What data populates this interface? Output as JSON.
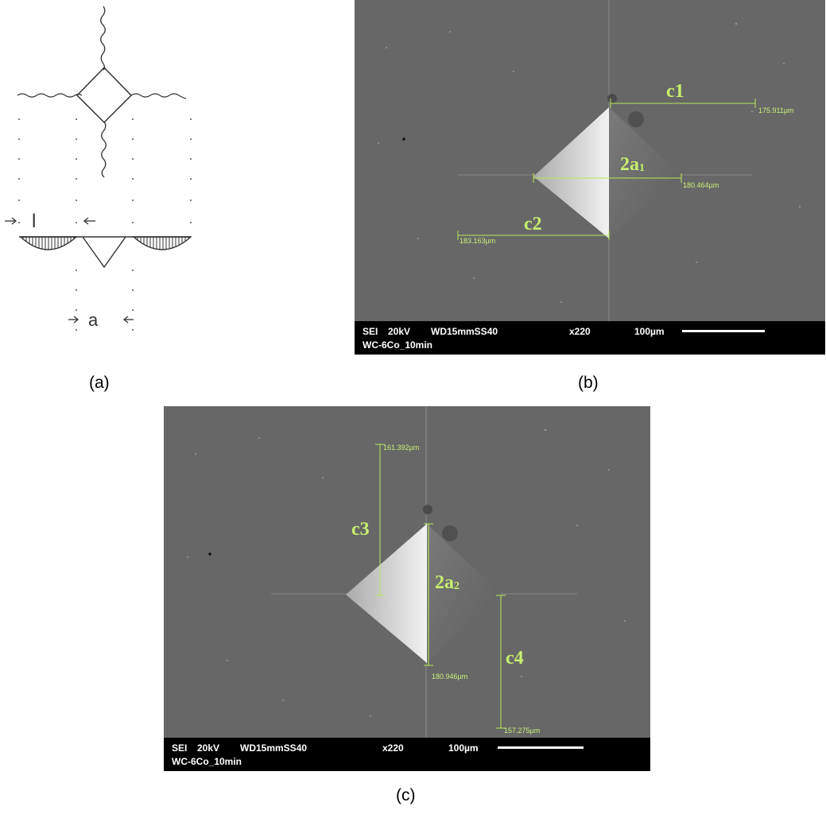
{
  "figure": {
    "captions": {
      "a": "(a)",
      "b": "(b)",
      "c": "(c)"
    }
  },
  "schematic": {
    "label_l": "l",
    "label_a": "a"
  },
  "panel_b": {
    "labels": {
      "c1": "c1",
      "a_main": "2a",
      "a_sub": "1",
      "c2": "c2"
    },
    "measurements": {
      "c1": "175.911µm",
      "a1": "180.464µm",
      "c2": "183.163µm"
    },
    "infobar": {
      "mode": "SEI",
      "voltage": "20kV",
      "wd": "WD15mmSS40",
      "mag": "x220",
      "scale": "100µm",
      "sample": "WC-6Co_10min"
    }
  },
  "panel_c": {
    "labels": {
      "c3": "c3",
      "a_main": "2a",
      "a_sub": "2",
      "c4": "c4"
    },
    "measurements": {
      "c3": "161.392µm",
      "a2": "180.946µm",
      "c4": "157.275µm"
    },
    "infobar": {
      "mode": "SEI",
      "voltage": "20kV",
      "wd": "WD15mmSS40",
      "mag": "x220",
      "scale": "100µm",
      "sample": "WC-6Co_10min"
    }
  },
  "colors": {
    "annotation": "#c6ee6e",
    "sem_background": "#666666",
    "infobar": "#000000"
  }
}
